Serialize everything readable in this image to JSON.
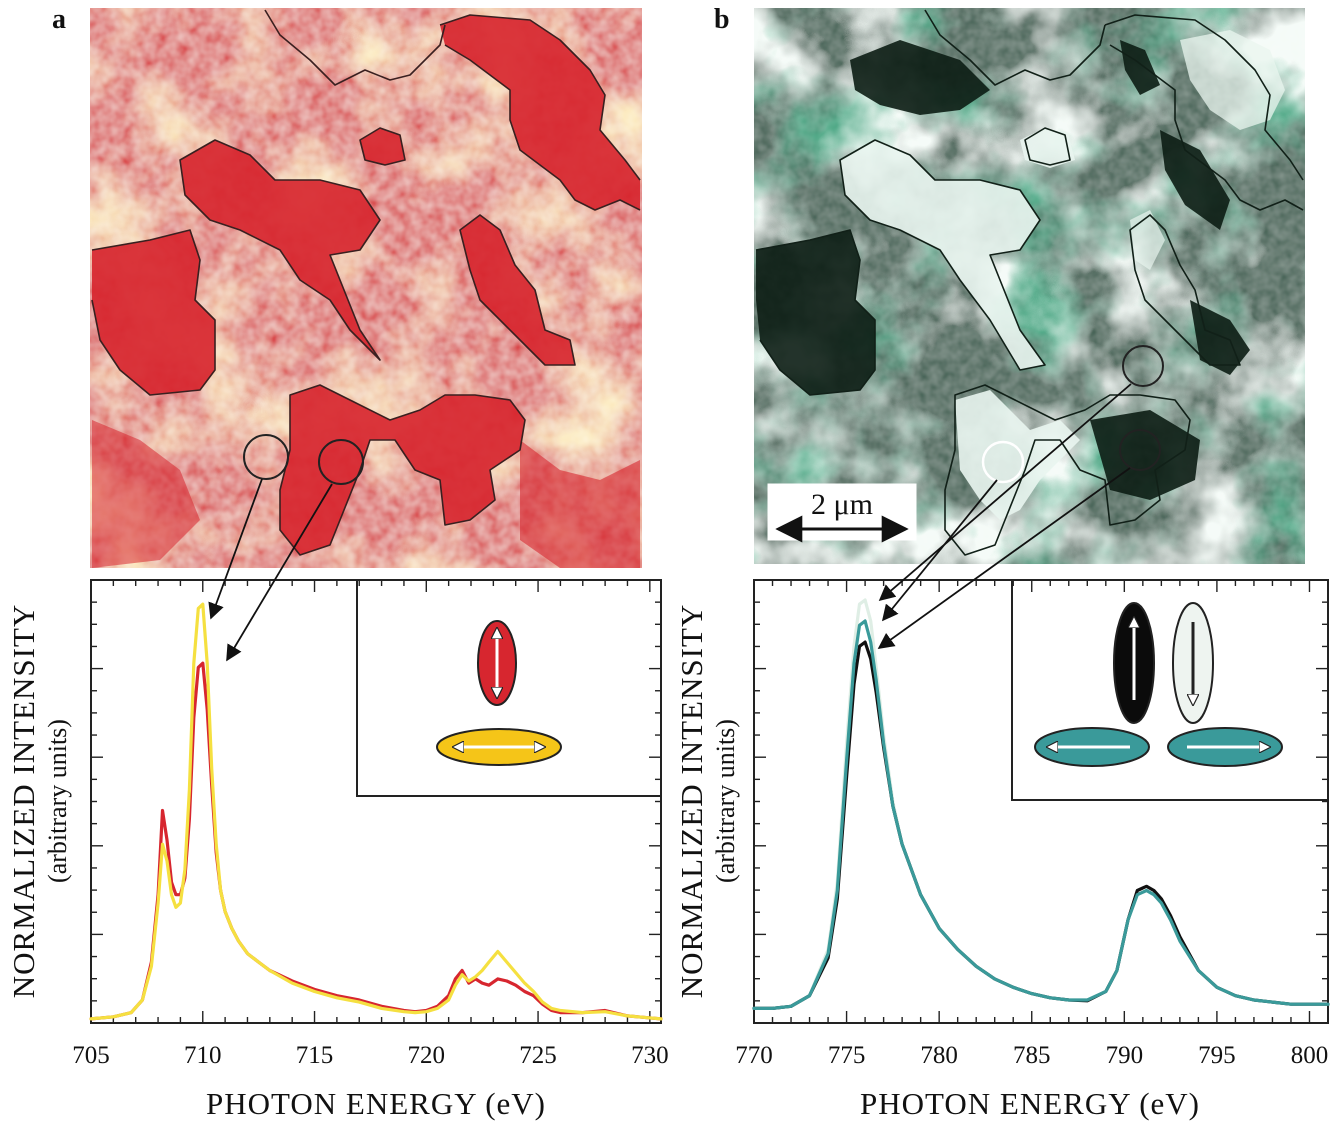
{
  "panel_labels": {
    "a": "a",
    "b": "b"
  },
  "scale_bar": {
    "label": "2 μm"
  },
  "colors": {
    "red_domain": "#d7262f",
    "yellow_domain": "#f5c518",
    "teal": "#3a9a9a",
    "dark_green": "#0c1d14",
    "light_green": "#e9f5ef",
    "map_a_light": "#fbe6b5",
    "map_b_mid": "#49a582"
  },
  "chart_data": [
    {
      "type": "line",
      "panel": "a",
      "xlabel": "PHOTON ENERGY (eV)",
      "ylabel": "NORMALIZED INTENSITY",
      "ylabel_sub": "(arbitrary units)",
      "xlim": [
        705,
        730.5
      ],
      "ylim": [
        0,
        1.0
      ],
      "xticks": [
        705,
        710,
        715,
        720,
        725,
        730
      ],
      "series": [
        {
          "name": "red domain",
          "color": "#d7262f",
          "x": [
            705,
            706,
            706.8,
            707.3,
            707.7,
            708.0,
            708.2,
            708.4,
            708.6,
            708.8,
            709.0,
            709.2,
            709.4,
            709.6,
            709.8,
            710.0,
            710.2,
            710.4,
            710.6,
            710.8,
            711.0,
            711.3,
            711.6,
            712.0,
            712.5,
            713.0,
            714.0,
            715.0,
            716.0,
            717.0,
            718.0,
            719.0,
            719.5,
            720.0,
            720.5,
            721.0,
            721.3,
            721.6,
            721.9,
            722.2,
            722.5,
            722.8,
            723.2,
            723.6,
            724.0,
            724.4,
            724.8,
            725.2,
            725.6,
            726.0,
            727.0,
            728.0,
            729.0,
            730.5
          ],
          "y": [
            0.005,
            0.01,
            0.02,
            0.05,
            0.14,
            0.3,
            0.5,
            0.43,
            0.33,
            0.3,
            0.3,
            0.34,
            0.48,
            0.72,
            0.84,
            0.85,
            0.74,
            0.56,
            0.4,
            0.31,
            0.26,
            0.22,
            0.19,
            0.16,
            0.14,
            0.12,
            0.095,
            0.075,
            0.06,
            0.05,
            0.035,
            0.025,
            0.022,
            0.025,
            0.035,
            0.06,
            0.1,
            0.12,
            0.09,
            0.1,
            0.09,
            0.085,
            0.1,
            0.095,
            0.085,
            0.07,
            0.06,
            0.04,
            0.025,
            0.02,
            0.02,
            0.025,
            0.012,
            0.005
          ]
        },
        {
          "name": "yellow domain",
          "color": "#f5e040",
          "x": [
            705,
            706,
            706.8,
            707.3,
            707.7,
            708.0,
            708.2,
            708.4,
            708.6,
            708.8,
            709.0,
            709.2,
            709.4,
            709.6,
            709.8,
            710.0,
            710.2,
            710.4,
            710.6,
            710.8,
            711.0,
            711.3,
            711.6,
            712.0,
            712.5,
            713.0,
            714.0,
            715.0,
            716.0,
            717.0,
            718.0,
            719.0,
            719.5,
            720.0,
            720.5,
            721.0,
            721.3,
            721.6,
            721.9,
            722.2,
            722.5,
            722.8,
            723.2,
            723.6,
            724.0,
            724.4,
            724.8,
            725.2,
            725.6,
            726.0,
            727.0,
            728.0,
            729.0,
            730.5
          ],
          "y": [
            0.005,
            0.01,
            0.02,
            0.05,
            0.13,
            0.28,
            0.42,
            0.38,
            0.3,
            0.27,
            0.28,
            0.36,
            0.55,
            0.85,
            0.98,
            0.99,
            0.85,
            0.6,
            0.42,
            0.31,
            0.26,
            0.22,
            0.19,
            0.16,
            0.14,
            0.12,
            0.09,
            0.07,
            0.055,
            0.045,
            0.03,
            0.022,
            0.02,
            0.022,
            0.03,
            0.05,
            0.085,
            0.11,
            0.095,
            0.105,
            0.12,
            0.14,
            0.165,
            0.14,
            0.115,
            0.09,
            0.07,
            0.045,
            0.03,
            0.025,
            0.02,
            0.022,
            0.012,
            0.005
          ]
        }
      ],
      "inset": {
        "glyphs": [
          {
            "shape": "vertical-ellipse",
            "fill": "#d7262f",
            "arrow": "up-down"
          },
          {
            "shape": "horizontal-ellipse",
            "fill": "#f5c518",
            "arrow": "left-right"
          }
        ]
      }
    },
    {
      "type": "line",
      "panel": "b",
      "xlabel": "PHOTON ENERGY (eV)",
      "ylabel": "NORMALIZED INTENSITY",
      "ylabel_sub": "(arbitrary units)",
      "xlim": [
        770,
        801
      ],
      "ylim": [
        0,
        1.0
      ],
      "xticks": [
        770,
        775,
        780,
        785,
        790,
        795,
        800
      ],
      "series": [
        {
          "name": "light domain",
          "color": "#dfeee5",
          "x": [
            770,
            771,
            772,
            773,
            774,
            774.5,
            775.0,
            775.4,
            775.7,
            776.0,
            776.3,
            776.6,
            777.0,
            777.5,
            778.0,
            779.0,
            780.0,
            781.0,
            782.0,
            783.0,
            784.0,
            785.0,
            786.0,
            787.0,
            788.0,
            789.0,
            789.6,
            790.2,
            790.7,
            791.2,
            791.6,
            792.0,
            792.5,
            793.0,
            794.0,
            795.0,
            796.0,
            797.0,
            798.0,
            799.0,
            801.0
          ],
          "y": [
            0.03,
            0.03,
            0.035,
            0.06,
            0.17,
            0.33,
            0.66,
            0.89,
            0.99,
            1.0,
            0.95,
            0.84,
            0.68,
            0.52,
            0.42,
            0.3,
            0.22,
            0.17,
            0.13,
            0.1,
            0.08,
            0.065,
            0.055,
            0.05,
            0.05,
            0.07,
            0.12,
            0.24,
            0.3,
            0.31,
            0.3,
            0.28,
            0.24,
            0.19,
            0.12,
            0.08,
            0.06,
            0.05,
            0.045,
            0.04,
            0.04
          ]
        },
        {
          "name": "dark domain",
          "color": "#111111",
          "x": [
            770,
            771,
            772,
            773,
            774,
            774.5,
            775.0,
            775.4,
            775.7,
            776.0,
            776.3,
            776.6,
            777.0,
            777.5,
            778.0,
            779.0,
            780.0,
            781.0,
            782.0,
            783.0,
            784.0,
            785.0,
            786.0,
            787.0,
            788.0,
            789.0,
            789.6,
            790.2,
            790.7,
            791.2,
            791.6,
            792.0,
            792.5,
            793.0,
            794.0,
            795.0,
            796.0,
            797.0,
            798.0,
            799.0,
            801.0
          ],
          "y": [
            0.03,
            0.03,
            0.035,
            0.06,
            0.15,
            0.29,
            0.58,
            0.8,
            0.89,
            0.9,
            0.86,
            0.78,
            0.65,
            0.51,
            0.42,
            0.3,
            0.22,
            0.17,
            0.13,
            0.1,
            0.08,
            0.065,
            0.055,
            0.05,
            0.048,
            0.07,
            0.12,
            0.24,
            0.31,
            0.32,
            0.31,
            0.29,
            0.25,
            0.2,
            0.12,
            0.08,
            0.06,
            0.05,
            0.045,
            0.04,
            0.04
          ]
        },
        {
          "name": "intermediate domain",
          "color": "#3a9a9a",
          "x": [
            770,
            771,
            772,
            773,
            774,
            774.5,
            775.0,
            775.4,
            775.7,
            776.0,
            776.3,
            776.6,
            777.0,
            777.5,
            778.0,
            779.0,
            780.0,
            781.0,
            782.0,
            783.0,
            784.0,
            785.0,
            786.0,
            787.0,
            788.0,
            789.0,
            789.6,
            790.2,
            790.7,
            791.2,
            791.6,
            792.0,
            792.5,
            793.0,
            794.0,
            795.0,
            796.0,
            797.0,
            798.0,
            799.0,
            801.0
          ],
          "y": [
            0.03,
            0.03,
            0.035,
            0.06,
            0.16,
            0.31,
            0.62,
            0.85,
            0.94,
            0.95,
            0.9,
            0.81,
            0.66,
            0.51,
            0.42,
            0.3,
            0.22,
            0.17,
            0.13,
            0.1,
            0.08,
            0.065,
            0.055,
            0.05,
            0.05,
            0.07,
            0.12,
            0.24,
            0.3,
            0.31,
            0.3,
            0.28,
            0.24,
            0.19,
            0.12,
            0.08,
            0.06,
            0.05,
            0.045,
            0.04,
            0.04
          ]
        }
      ],
      "inset": {
        "glyphs": [
          {
            "shape": "vertical-ellipse",
            "fill": "#0b0b0b",
            "arrow": "up"
          },
          {
            "shape": "vertical-ellipse",
            "fill": "#eef4f0",
            "arrow": "down"
          },
          {
            "shape": "horizontal-ellipse",
            "fill": "#3a9a9a",
            "arrow": "left"
          },
          {
            "shape": "horizontal-ellipse",
            "fill": "#3a9a9a",
            "arrow": "right"
          }
        ]
      }
    }
  ]
}
